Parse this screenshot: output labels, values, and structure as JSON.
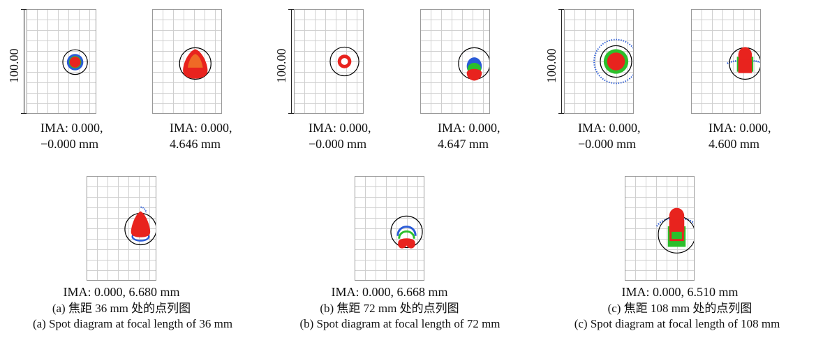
{
  "scale_label": "100.00",
  "colors": {
    "blue": "#2a5bd7",
    "green": "#2bbf2b",
    "red": "#e8231e",
    "circle": "#000000"
  },
  "top_panels": [
    {
      "line1": "IMA: 0.000,",
      "line2": "−0.000 mm"
    },
    {
      "line1": "IMA: 0.000,",
      "line2": "4.646 mm"
    },
    {
      "line1": "IMA: 0.000,",
      "line2": "−0.000 mm"
    },
    {
      "line1": "IMA: 0.000,",
      "line2": "4.647 mm"
    },
    {
      "line1": "IMA: 0.000,",
      "line2": "−0.000 mm"
    },
    {
      "line1": "IMA: 0.000,",
      "line2": "4.600 mm"
    }
  ],
  "bottom_panels": [
    {
      "label": "IMA: 0.000, 6.680 mm"
    },
    {
      "label": "IMA: 0.000, 6.668 mm"
    },
    {
      "label": "IMA: 0.000, 6.510 mm"
    }
  ],
  "captions": [
    {
      "zh": "(a) 焦距 36 mm 处的点列图",
      "en": "(a) Spot diagram at focal length of 36 mm"
    },
    {
      "zh": "(b) 焦距 72 mm 处的点列图",
      "en": "(b) Spot diagram at focal length of 72 mm"
    },
    {
      "zh": "(c) 焦距 108 mm 处的点列图",
      "en": "(c) Spot diagram at focal length of 108 mm"
    }
  ]
}
